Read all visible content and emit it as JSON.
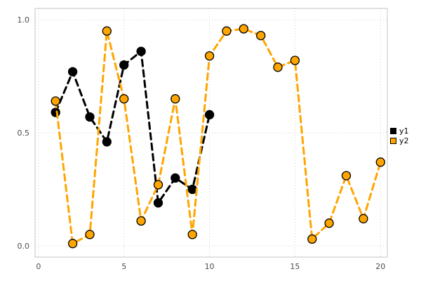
{
  "chart_data": {
    "type": "line",
    "title": "",
    "xlabel": "",
    "ylabel": "",
    "xlim": [
      -0.2,
      20.4
    ],
    "ylim": [
      -0.05,
      1.05
    ],
    "xticks": [
      0,
      5,
      10,
      15,
      20
    ],
    "xtick_labels": [
      "0",
      "5",
      "10",
      "15",
      "20"
    ],
    "yticks": [
      0.0,
      0.5,
      1.0
    ],
    "ytick_labels": [
      "0.0",
      "0.5",
      "1.0"
    ],
    "grid": "dotted",
    "line_style": "dashed",
    "marker": "circle",
    "legend_position": "outer-right",
    "colors": {
      "grid": "#d0d0d0",
      "frame": "#c6c6c6",
      "tick_text": "#4d4d4d"
    },
    "series": [
      {
        "name": "y1",
        "color": "#000000",
        "x": [
          1,
          2,
          3,
          4,
          5,
          6,
          7,
          8,
          9,
          10
        ],
        "values": [
          0.59,
          0.77,
          0.57,
          0.46,
          0.8,
          0.86,
          0.19,
          0.3,
          0.25,
          0.58
        ]
      },
      {
        "name": "y2",
        "color": "#FFA500",
        "x": [
          1,
          2,
          3,
          4,
          5,
          6,
          7,
          8,
          9,
          10,
          11,
          12,
          13,
          14,
          15,
          16,
          17,
          18,
          19,
          20
        ],
        "values": [
          0.64,
          0.01,
          0.05,
          0.95,
          0.65,
          0.11,
          0.27,
          0.65,
          0.05,
          0.84,
          0.95,
          0.96,
          0.93,
          0.79,
          0.82,
          0.03,
          0.1,
          0.31,
          0.12,
          0.37
        ]
      }
    ]
  }
}
